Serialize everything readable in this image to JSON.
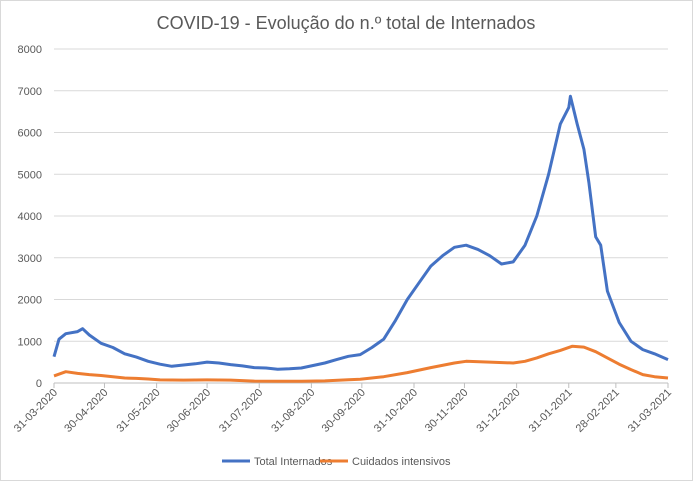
{
  "chart_data": {
    "type": "line",
    "title": "COVID-19 - Evolução do n.º total de Internados",
    "xlabel": "",
    "ylabel": "",
    "ylim": [
      0,
      8000
    ],
    "yticks": [
      "0",
      "1000",
      "2000",
      "3000",
      "4000",
      "5000",
      "6000",
      "7000",
      "8000"
    ],
    "xticks": [
      "31-03-2020",
      "30-04-2020",
      "31-05-2020",
      "30-06-2020",
      "31-07-2020",
      "31-08-2020",
      "30-09-2020",
      "31-10-2020",
      "30-11-2020",
      "31-12-2020",
      "31-01-2021",
      "28-02-2021",
      "31-03-2021"
    ],
    "grid": true,
    "legend_position": "bottom",
    "series": [
      {
        "name": "Total Internados",
        "color": "#4472C4",
        "points": [
          [
            "31-03-2020",
            630
          ],
          [
            "03-04-2020",
            1050
          ],
          [
            "07-04-2020",
            1180
          ],
          [
            "14-04-2020",
            1230
          ],
          [
            "17-04-2020",
            1300
          ],
          [
            "21-04-2020",
            1150
          ],
          [
            "28-04-2020",
            950
          ],
          [
            "05-05-2020",
            850
          ],
          [
            "12-05-2020",
            700
          ],
          [
            "19-05-2020",
            620
          ],
          [
            "26-05-2020",
            520
          ],
          [
            "02-06-2020",
            450
          ],
          [
            "09-06-2020",
            400
          ],
          [
            "16-06-2020",
            430
          ],
          [
            "23-06-2020",
            460
          ],
          [
            "30-06-2020",
            500
          ],
          [
            "07-07-2020",
            480
          ],
          [
            "14-07-2020",
            440
          ],
          [
            "21-07-2020",
            410
          ],
          [
            "28-07-2020",
            370
          ],
          [
            "04-08-2020",
            360
          ],
          [
            "11-08-2020",
            330
          ],
          [
            "18-08-2020",
            340
          ],
          [
            "25-08-2020",
            360
          ],
          [
            "01-09-2020",
            420
          ],
          [
            "08-09-2020",
            480
          ],
          [
            "15-09-2020",
            560
          ],
          [
            "22-09-2020",
            640
          ],
          [
            "29-09-2020",
            680
          ],
          [
            "06-10-2020",
            850
          ],
          [
            "13-10-2020",
            1050
          ],
          [
            "20-10-2020",
            1500
          ],
          [
            "27-10-2020",
            2000
          ],
          [
            "03-11-2020",
            2400
          ],
          [
            "10-11-2020",
            2800
          ],
          [
            "17-11-2020",
            3050
          ],
          [
            "24-11-2020",
            3250
          ],
          [
            "01-12-2020",
            3300
          ],
          [
            "08-12-2020",
            3200
          ],
          [
            "15-12-2020",
            3050
          ],
          [
            "22-12-2020",
            2850
          ],
          [
            "29-12-2020",
            2900
          ],
          [
            "05-01-2021",
            3300
          ],
          [
            "12-01-2021",
            4000
          ],
          [
            "19-01-2021",
            5000
          ],
          [
            "26-01-2021",
            6200
          ],
          [
            "31-01-2021",
            6600
          ],
          [
            "01-02-2021",
            6870
          ],
          [
            "05-02-2021",
            6200
          ],
          [
            "09-02-2021",
            5600
          ],
          [
            "12-02-2021",
            4800
          ],
          [
            "16-02-2021",
            3500
          ],
          [
            "19-02-2021",
            3300
          ],
          [
            "23-02-2021",
            2200
          ],
          [
            "02-03-2021",
            1450
          ],
          [
            "09-03-2021",
            1000
          ],
          [
            "16-03-2021",
            800
          ],
          [
            "23-03-2021",
            700
          ],
          [
            "31-03-2021",
            560
          ]
        ]
      },
      {
        "name": "Cuidados intensivos",
        "color": "#ED7D31",
        "points": [
          [
            "31-03-2020",
            170
          ],
          [
            "07-04-2020",
            270
          ],
          [
            "14-04-2020",
            230
          ],
          [
            "21-04-2020",
            200
          ],
          [
            "28-04-2020",
            180
          ],
          [
            "05-05-2020",
            150
          ],
          [
            "12-05-2020",
            120
          ],
          [
            "19-05-2020",
            110
          ],
          [
            "26-05-2020",
            95
          ],
          [
            "02-06-2020",
            75
          ],
          [
            "16-06-2020",
            70
          ],
          [
            "30-06-2020",
            75
          ],
          [
            "14-07-2020",
            70
          ],
          [
            "28-07-2020",
            45
          ],
          [
            "11-08-2020",
            40
          ],
          [
            "25-08-2020",
            40
          ],
          [
            "08-09-2020",
            50
          ],
          [
            "22-09-2020",
            80
          ],
          [
            "29-09-2020",
            90
          ],
          [
            "13-10-2020",
            150
          ],
          [
            "27-10-2020",
            250
          ],
          [
            "10-11-2020",
            370
          ],
          [
            "24-11-2020",
            480
          ],
          [
            "01-12-2020",
            520
          ],
          [
            "15-12-2020",
            500
          ],
          [
            "29-12-2020",
            480
          ],
          [
            "05-01-2021",
            520
          ],
          [
            "12-01-2021",
            600
          ],
          [
            "19-01-2021",
            700
          ],
          [
            "26-01-2021",
            780
          ],
          [
            "02-02-2021",
            880
          ],
          [
            "09-02-2021",
            860
          ],
          [
            "16-02-2021",
            750
          ],
          [
            "23-02-2021",
            600
          ],
          [
            "02-03-2021",
            450
          ],
          [
            "09-03-2021",
            320
          ],
          [
            "16-03-2021",
            200
          ],
          [
            "23-03-2021",
            150
          ],
          [
            "31-03-2021",
            120
          ]
        ]
      }
    ]
  }
}
